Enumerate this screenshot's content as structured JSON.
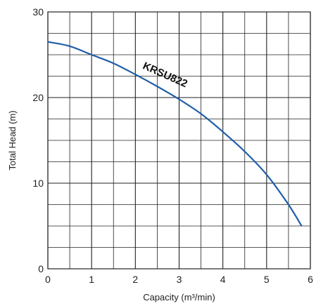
{
  "chart_data": {
    "type": "line",
    "xlabel": "Capacity (m³/min)",
    "ylabel": "Total Head (m)",
    "xlim": [
      0,
      6
    ],
    "ylim": [
      0,
      30
    ],
    "x_ticks": [
      "0",
      "1",
      "2",
      "3",
      "4",
      "5",
      "6"
    ],
    "y_ticks": [
      "0",
      "10",
      "20",
      "30"
    ],
    "x_grid_step": 0.5,
    "y_grid_step": 2.5,
    "grid": true,
    "series": [
      {
        "name": "KRSU822",
        "color": "#1f5ea8",
        "x": [
          0,
          0.5,
          1.0,
          1.5,
          2.0,
          2.5,
          3.0,
          3.5,
          4.0,
          4.5,
          5.0,
          5.5,
          5.8
        ],
        "y": [
          26.5,
          26.0,
          25.0,
          24.0,
          22.7,
          21.3,
          19.8,
          18.1,
          16.0,
          13.7,
          11.0,
          7.5,
          5.0
        ]
      }
    ]
  }
}
